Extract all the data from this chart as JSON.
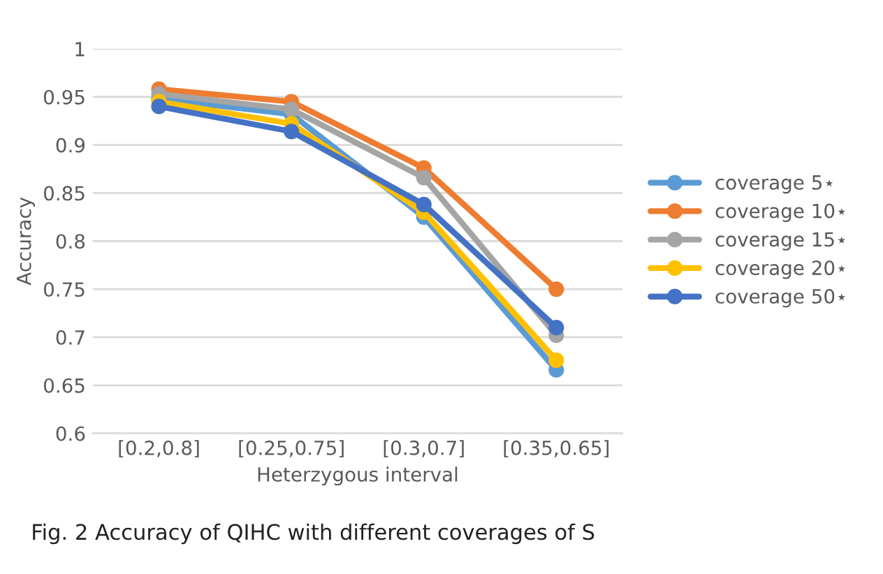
{
  "chart_data": {
    "type": "line",
    "xlabel": "Heterzygous interval",
    "ylabel": "Accuracy",
    "categories": [
      "[0.2,0.8]",
      "[0.25,0.75]",
      "[0.3,0.7]",
      "[0.35,0.65]"
    ],
    "series": [
      {
        "name": "coverage 5⋆",
        "color": "#5b9bd5",
        "values": [
          0.948,
          0.932,
          0.825,
          0.666
        ]
      },
      {
        "name": "coverage 10⋆",
        "color": "#ed7d31",
        "values": [
          0.958,
          0.945,
          0.876,
          0.75
        ]
      },
      {
        "name": "coverage 15⋆",
        "color": "#a5a5a5",
        "values": [
          0.953,
          0.937,
          0.866,
          0.702
        ]
      },
      {
        "name": "coverage 20⋆",
        "color": "#ffc000",
        "values": [
          0.945,
          0.922,
          0.83,
          0.676
        ]
      },
      {
        "name": "coverage 50⋆",
        "color": "#4472c4",
        "values": [
          0.94,
          0.914,
          0.838,
          0.71
        ]
      }
    ],
    "ylim": [
      0.6,
      1
    ],
    "yticks": [
      0.6,
      0.65,
      0.7,
      0.75,
      0.8,
      0.85,
      0.9,
      0.95,
      1
    ],
    "grid": "y",
    "legend": "right",
    "marker": "circle",
    "line_style": "solid",
    "annotations": [
      "Fig. 2 Accuracy of QIHC with different coverages of S"
    ]
  }
}
